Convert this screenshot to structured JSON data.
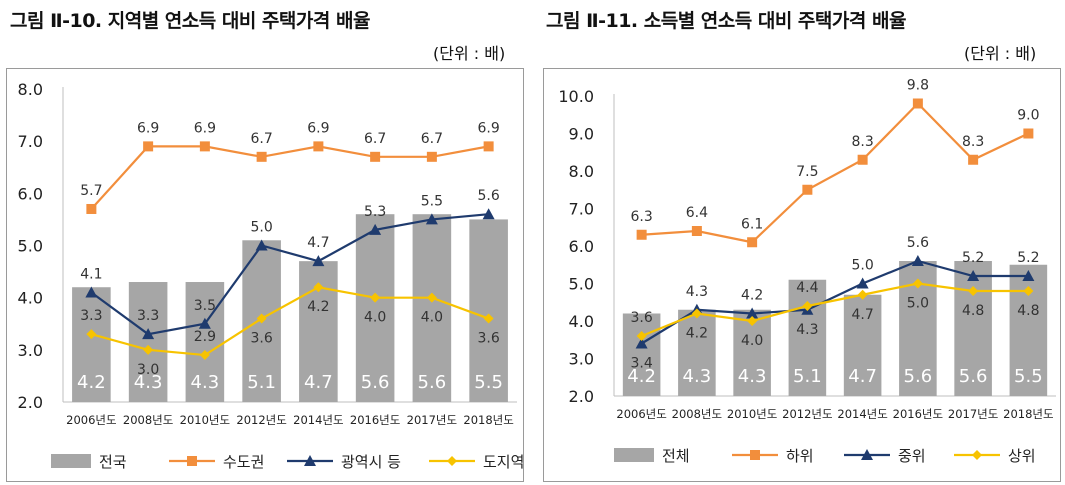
{
  "left": {
    "title": "그림 Ⅱ-10. 지역별 연소득 대비 주택가격 배율",
    "unit": "(단위 : 배)"
  },
  "right": {
    "title": "그림 Ⅱ-11. 소득별 연소득 대비 주택가격 배율",
    "unit": "(단위 : 배)"
  },
  "colors": {
    "bar": "#a6a6a6",
    "orange": "#f28e3c",
    "navy": "#1f3b6e",
    "yellow": "#f7c300"
  },
  "chart_data": [
    {
      "type": "bar+line",
      "title": "그림 Ⅱ-10. 지역별 연소득 대비 주택가격 배율",
      "ylim": [
        2.0,
        8.0
      ],
      "yticks": [
        "2.0",
        "3.0",
        "4.0",
        "5.0",
        "6.0",
        "7.0",
        "8.0"
      ],
      "categories": [
        "2006년도",
        "2008년도",
        "2010년도",
        "2012년도",
        "2014년도",
        "2016년도",
        "2017년도",
        "2018년도"
      ],
      "bar_series": {
        "name": "전국",
        "values": [
          4.2,
          4.3,
          4.3,
          5.1,
          4.7,
          5.6,
          5.6,
          5.5
        ],
        "labels": [
          "4.2",
          "4.3",
          "4.3",
          "5.1",
          "4.7",
          "5.6",
          "5.6",
          "5.5"
        ]
      },
      "line_series": [
        {
          "name": "수도권",
          "color": "orange",
          "marker": "square",
          "values": [
            5.7,
            6.9,
            6.9,
            6.7,
            6.9,
            6.7,
            6.7,
            6.9
          ],
          "labels": [
            "5.7",
            "6.9",
            "6.9",
            "6.7",
            "6.9",
            "6.7",
            "6.7",
            "6.9"
          ],
          "label_pos": [
            "above",
            "above",
            "above",
            "above",
            "above",
            "above",
            "above",
            "above"
          ]
        },
        {
          "name": "광역시 등",
          "color": "navy",
          "marker": "triangle",
          "values": [
            4.1,
            3.3,
            3.5,
            5.0,
            4.7,
            5.3,
            5.5,
            5.6
          ],
          "labels": [
            "4.1",
            "3.3",
            "3.5",
            "5.0",
            "4.7",
            "5.3",
            "5.5",
            "5.6"
          ],
          "label_pos": [
            "above",
            "above",
            "above",
            "above",
            "above",
            "above",
            "above",
            "above"
          ]
        },
        {
          "name": "도지역",
          "color": "yellow",
          "marker": "diamond",
          "values": [
            3.3,
            3.0,
            2.9,
            3.6,
            4.2,
            4.0,
            4.0,
            3.6
          ],
          "labels": [
            "3.3",
            "3.0",
            "2.9",
            "3.6",
            "4.2",
            "4.0",
            "4.0",
            "3.6"
          ],
          "label_pos": [
            "above",
            "below",
            "above",
            "below",
            "below",
            "below",
            "below",
            "below"
          ]
        }
      ]
    },
    {
      "type": "bar+line",
      "title": "그림 Ⅱ-11. 소득별 연소득 대비 주택가격 배율",
      "ylim": [
        2.0,
        10.0
      ],
      "yticks": [
        "2.0",
        "3.0",
        "4.0",
        "5.0",
        "6.0",
        "7.0",
        "8.0",
        "9.0",
        "10.0"
      ],
      "categories": [
        "2006년도",
        "2008년도",
        "2010년도",
        "2012년도",
        "2014년도",
        "2016년도",
        "2017년도",
        "2018년도"
      ],
      "bar_series": {
        "name": "전체",
        "values": [
          4.2,
          4.3,
          4.3,
          5.1,
          4.7,
          5.6,
          5.6,
          5.5
        ],
        "labels": [
          "4.2",
          "4.3",
          "4.3",
          "5.1",
          "4.7",
          "5.6",
          "5.6",
          "5.5"
        ]
      },
      "line_series": [
        {
          "name": "하위",
          "color": "orange",
          "marker": "square",
          "values": [
            6.3,
            6.4,
            6.1,
            7.5,
            8.3,
            9.8,
            8.3,
            9.0
          ],
          "labels": [
            "6.3",
            "6.4",
            "6.1",
            "7.5",
            "8.3",
            "9.8",
            "8.3",
            "9.0"
          ],
          "label_pos": [
            "above",
            "above",
            "above",
            "above",
            "above",
            "above",
            "above",
            "above"
          ]
        },
        {
          "name": "중위",
          "color": "navy",
          "marker": "triangle",
          "values": [
            3.4,
            4.3,
            4.2,
            4.3,
            5.0,
            5.6,
            5.2,
            5.2
          ],
          "labels": [
            "3.4",
            "4.3",
            "4.2",
            "4.3",
            "5.0",
            "5.6",
            "5.2",
            "5.2"
          ],
          "label_pos": [
            "below",
            "above",
            "above",
            "below",
            "above",
            "above",
            "above",
            "above"
          ]
        },
        {
          "name": "상위",
          "color": "yellow",
          "marker": "diamond",
          "values": [
            3.6,
            4.2,
            4.0,
            4.4,
            4.7,
            5.0,
            4.8,
            4.8
          ],
          "labels": [
            "3.6",
            "4.2",
            "4.0",
            "4.4",
            "4.7",
            "5.0",
            "4.8",
            "4.8"
          ],
          "label_pos": [
            "above",
            "below",
            "below",
            "above",
            "below",
            "below",
            "below",
            "below"
          ]
        }
      ]
    }
  ]
}
